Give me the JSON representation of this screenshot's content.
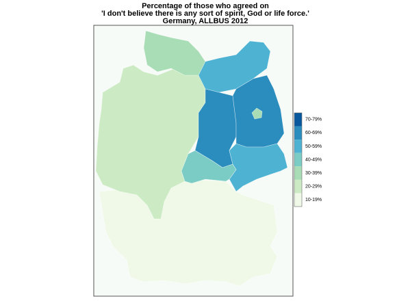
{
  "title": [
    "Percentage of those who agreed on",
    "'I don't believe there is any sort of spirit, God or life force.'",
    "Germany, ALLBUS 2012"
  ],
  "legend": {
    "items": [
      {
        "label": "70-79%",
        "color": "#08589e"
      },
      {
        "label": "60-69%",
        "color": "#2b8cbe"
      },
      {
        "label": "50-59%",
        "color": "#4eb3d3"
      },
      {
        "label": "40-49%",
        "color": "#7bccc4"
      },
      {
        "label": "30-39%",
        "color": "#a8ddb5"
      },
      {
        "label": "20-29%",
        "color": "#ccebc5"
      },
      {
        "label": "10-19%",
        "color": "#f0f9e8"
      }
    ]
  }
}
